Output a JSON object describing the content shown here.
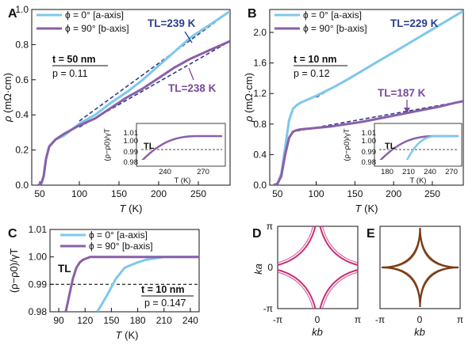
{
  "colors": {
    "a_axis": "#7ec8ea",
    "b_axis": "#8a5fa8",
    "dash": "#2b3f8c",
    "pink": "#c8307a",
    "brown": "#7a3b12"
  },
  "panels": {
    "A": {
      "letter": "A",
      "xlabel": [
        "T",
        " (K)"
      ],
      "ylabel": [
        "ρ",
        " (mΩ·cm)"
      ],
      "xticks": [
        50,
        100,
        150,
        200,
        250
      ],
      "yticks": [
        "0.0",
        "0.2",
        "0.4",
        "0.6",
        "0.8",
        "1.0"
      ],
      "legend": [
        {
          "phi": "ϕ = 0°",
          "axis": "[a-axis]"
        },
        {
          "phi": "ϕ = 90°",
          "axis": "[b-axis]"
        }
      ],
      "thickness": "t = 50 nm",
      "p": "p = 0.11",
      "tl_blue": "TL=239 K",
      "tl_purple": "TL=238 K",
      "inset": {
        "ylabel": "(ρ−ρ0)/γT",
        "yticks": [
          "1.01",
          "1.00",
          "0.99",
          "0.98"
        ],
        "xticks": [
          "240",
          "270"
        ],
        "xlabel": "T (K)",
        "tl": "TL"
      }
    },
    "B": {
      "letter": "B",
      "xlabel": [
        "T",
        " (K)"
      ],
      "ylabel": [
        "ρ",
        " (mΩ·cm)"
      ],
      "xticks": [
        50,
        100,
        150,
        200,
        250
      ],
      "yticks": [
        "0.0",
        "0.4",
        "0.8",
        "1.2",
        "1.6",
        "2.0"
      ],
      "legend": [
        {
          "phi": "ϕ = 0°",
          "axis": "[a-axis]"
        },
        {
          "phi": "ϕ = 90°",
          "axis": "[b-axis]"
        }
      ],
      "thickness": "t = 10 nm",
      "p": "p = 0.12",
      "tl_blue": "TL=229 K",
      "tl_purple": "TL=187 K",
      "inset": {
        "ylabel": "(ρ−ρ0)/γT",
        "yticks": [
          "1.01",
          "1.00",
          "0.99",
          "0.98"
        ],
        "xticks": [
          "180",
          "210",
          "240",
          "270"
        ],
        "xlabel": "T (K)",
        "tl": "TL"
      }
    },
    "C": {
      "letter": "C",
      "xlabel": [
        "T",
        " (K)"
      ],
      "ylabel": "(ρ−ρ0)/γT",
      "xticks": [
        90,
        120,
        150,
        180,
        210,
        240
      ],
      "yticks": [
        "1.01",
        "1.00",
        "0.99",
        "0.98"
      ],
      "legend": [
        {
          "phi": "ϕ = 0°",
          "axis": "[a-axis]"
        },
        {
          "phi": "ϕ = 90°",
          "axis": "[b-axis]"
        }
      ],
      "thickness": "t = 10 nm",
      "p": "p = 0.147",
      "tl": "TL"
    },
    "D": {
      "letter": "D",
      "xlabel": "kb",
      "ylabel": "ka",
      "xticks": [
        "-π",
        "0",
        "π"
      ],
      "yticks": [
        "π",
        "0",
        "-π"
      ]
    },
    "E": {
      "letter": "E",
      "xlabel": "kb",
      "xticks": [
        "-π",
        "0",
        "π"
      ]
    }
  },
  "chart_data": [
    {
      "panel": "A",
      "type": "line",
      "xlabel": "T (K)",
      "ylabel": "ρ (mΩ·cm)",
      "xlim": [
        40,
        290
      ],
      "ylim": [
        0,
        1.0
      ],
      "series": [
        {
          "name": "ϕ = 0° [a-axis]",
          "x": [
            48,
            52,
            55,
            58,
            62,
            70,
            80,
            100,
            120,
            140,
            160,
            180,
            200,
            220,
            240,
            260,
            280,
            290
          ],
          "y": [
            0.0,
            0.01,
            0.05,
            0.15,
            0.22,
            0.26,
            0.28,
            0.35,
            0.4,
            0.47,
            0.53,
            0.6,
            0.68,
            0.76,
            0.84,
            0.9,
            0.96,
            0.99
          ]
        },
        {
          "name": "ϕ = 90° [b-axis]",
          "x": [
            48,
            52,
            55,
            58,
            62,
            70,
            80,
            100,
            120,
            140,
            160,
            180,
            200,
            220,
            240,
            260,
            280,
            290
          ],
          "y": [
            0.0,
            0.01,
            0.05,
            0.15,
            0.22,
            0.26,
            0.29,
            0.34,
            0.38,
            0.44,
            0.5,
            0.55,
            0.61,
            0.67,
            0.72,
            0.76,
            0.8,
            0.82
          ]
        }
      ],
      "fits": [
        {
          "x": [
            100,
            290
          ],
          "y": [
            0.365,
            0.99
          ]
        },
        {
          "x": [
            100,
            290
          ],
          "y": [
            0.33,
            0.82
          ]
        }
      ],
      "annotations": [
        "TL=239 K",
        "TL=238 K",
        "t = 50 nm",
        "p = 0.11"
      ]
    },
    {
      "panel": "B",
      "type": "line",
      "xlabel": "T (K)",
      "ylabel": "ρ (mΩ·cm)",
      "xlim": [
        40,
        290
      ],
      "ylim": [
        0,
        2.3
      ],
      "series": [
        {
          "name": "ϕ = 0° [a-axis]",
          "x": [
            45,
            50,
            55,
            60,
            65,
            70,
            75,
            80,
            100,
            120,
            140,
            160,
            180,
            200,
            220,
            240,
            260,
            280,
            290
          ],
          "y": [
            0.0,
            0.02,
            0.15,
            0.5,
            0.85,
            1.0,
            1.05,
            1.08,
            1.17,
            1.27,
            1.38,
            1.5,
            1.62,
            1.74,
            1.86,
            1.98,
            2.1,
            2.22,
            2.28
          ]
        },
        {
          "name": "ϕ = 90° [b-axis]",
          "x": [
            45,
            50,
            55,
            60,
            65,
            70,
            75,
            80,
            100,
            120,
            140,
            160,
            180,
            200,
            220,
            240,
            260,
            280,
            290
          ],
          "y": [
            0.0,
            0.02,
            0.12,
            0.4,
            0.62,
            0.7,
            0.72,
            0.73,
            0.75,
            0.77,
            0.8,
            0.83,
            0.87,
            0.91,
            0.95,
            0.99,
            1.03,
            1.08,
            1.1
          ]
        }
      ],
      "fits": [
        {
          "x": [
            100,
            290
          ],
          "y": [
            1.15,
            2.28
          ]
        },
        {
          "x": [
            75,
            290
          ],
          "y": [
            0.71,
            1.1
          ]
        }
      ],
      "annotations": [
        "TL=229 K",
        "TL=187 K",
        "t = 10 nm",
        "p = 0.12"
      ]
    },
    {
      "panel": "C",
      "type": "line",
      "xlabel": "T (K)",
      "ylabel": "(ρ−ρ0)/γT",
      "xlim": [
        80,
        250
      ],
      "ylim": [
        0.98,
        1.01
      ],
      "series": [
        {
          "name": "ϕ = 0° [a-axis]",
          "x": [
            134,
            145,
            155,
            165,
            172,
            180,
            190,
            200,
            210,
            250
          ],
          "y": [
            0.98,
            0.986,
            0.992,
            0.996,
            0.997,
            0.998,
            0.999,
            0.9995,
            1.0,
            1.0
          ]
        },
        {
          "name": "ϕ = 90° [b-axis]",
          "x": [
            98,
            102,
            106,
            110,
            114,
            118,
            122,
            126,
            135,
            250
          ],
          "y": [
            0.98,
            0.986,
            0.992,
            0.996,
            0.998,
            0.999,
            0.9995,
            1.0,
            1.0,
            1.0
          ]
        }
      ],
      "reference_line": 0.99,
      "annotations": [
        "TL",
        "t = 10 nm",
        "p = 0.147"
      ]
    }
  ]
}
